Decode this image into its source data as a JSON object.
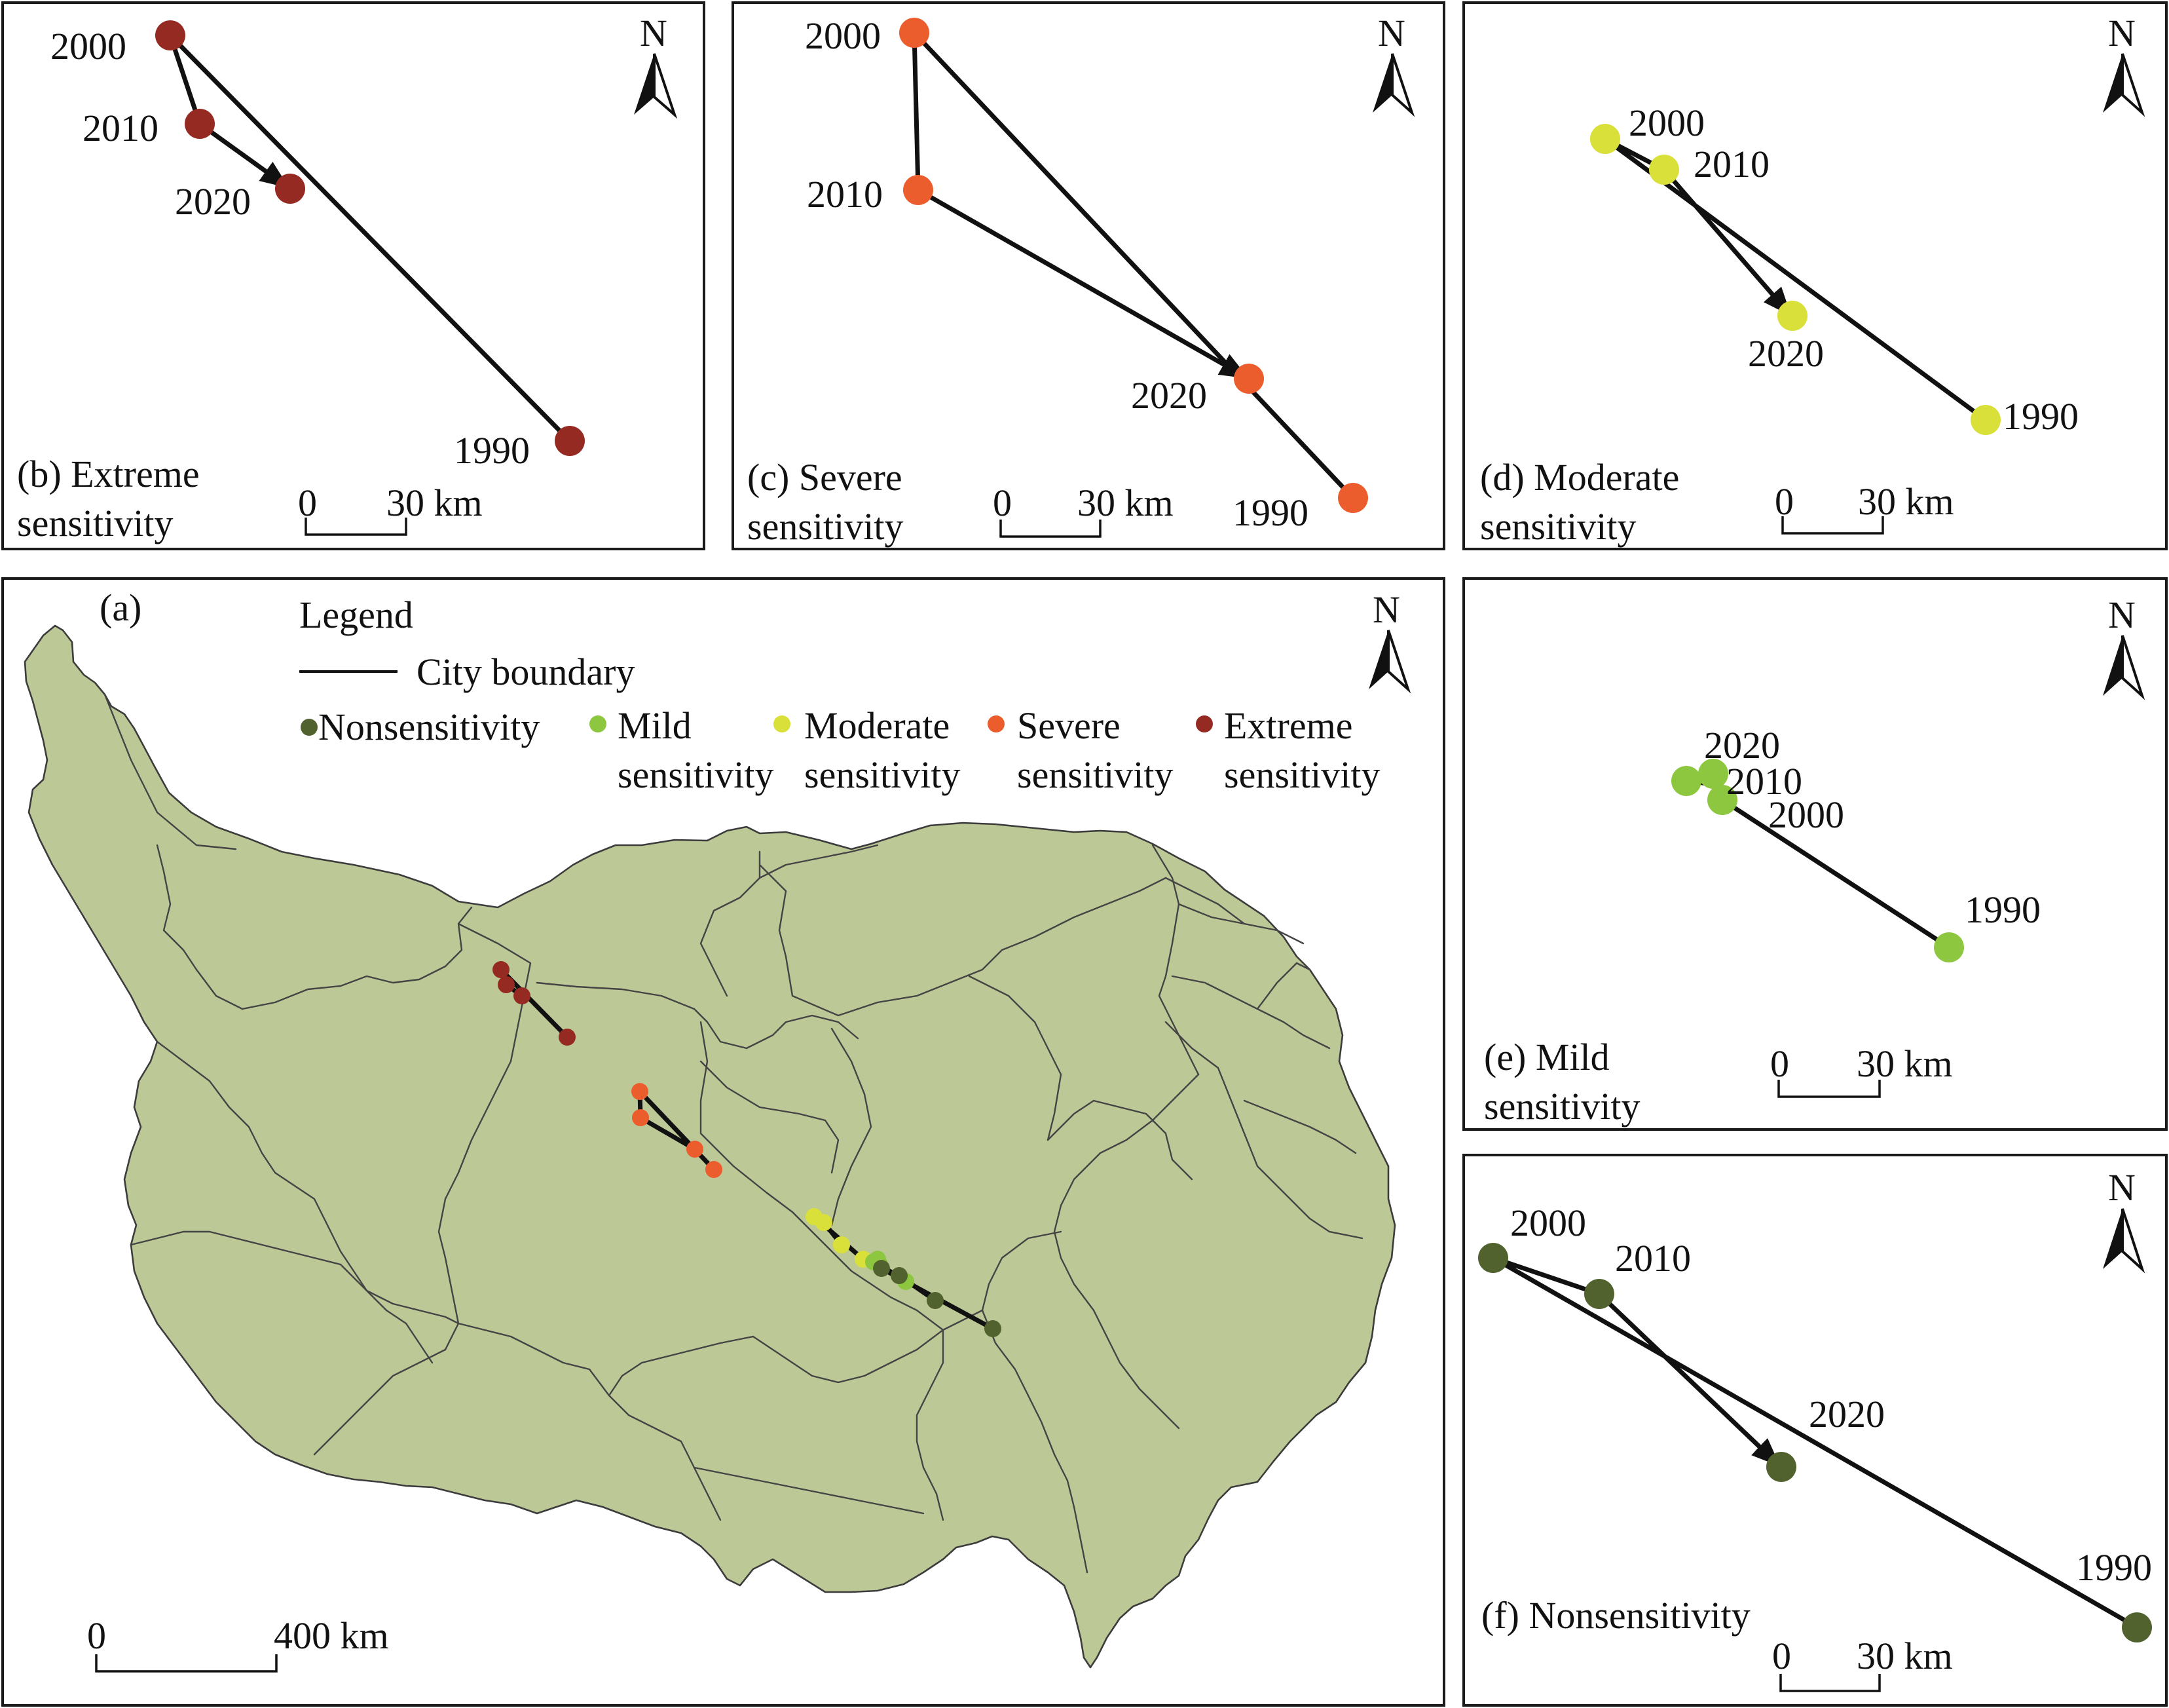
{
  "colors": {
    "nonsensitivity": "#52622f",
    "mild": "#8dc63f",
    "moderate": "#d9e03a",
    "severe": "#ec5d2e",
    "extreme": "#952a22",
    "land": "#bdc897"
  },
  "north_label": "N",
  "overview": {
    "panel_label": "(a)",
    "legend": {
      "title": "Legend",
      "boundary_label": "City boundary",
      "items": [
        {
          "key": "nonsensitivity",
          "lines": [
            "Nonsensitivity"
          ]
        },
        {
          "key": "mild",
          "lines": [
            "Mild",
            "sensitivity"
          ]
        },
        {
          "key": "moderate",
          "lines": [
            "Moderate",
            "sensitivity"
          ]
        },
        {
          "key": "severe",
          "lines": [
            "Severe",
            "sensitivity"
          ]
        },
        {
          "key": "extreme",
          "lines": [
            "Extreme",
            "sensitivity"
          ]
        }
      ]
    },
    "scale": {
      "start": "0",
      "end": "400 km"
    }
  },
  "panels": [
    {
      "id": "b",
      "title_lines": [
        "(b) Extreme",
        "sensitivity"
      ],
      "color_key": "extreme",
      "order": [
        "1990",
        "2000",
        "2010",
        "2020"
      ],
      "scale": {
        "start": "0",
        "end": "30 km"
      }
    },
    {
      "id": "c",
      "title_lines": [
        "(c) Severe",
        "sensitivity"
      ],
      "color_key": "severe",
      "order": [
        "1990",
        "2000",
        "2010",
        "2020"
      ],
      "scale": {
        "start": "0",
        "end": "30 km"
      }
    },
    {
      "id": "d",
      "title_lines": [
        "(d) Moderate",
        "sensitivity"
      ],
      "color_key": "moderate",
      "order": [
        "1990",
        "2000",
        "2010",
        "2020"
      ],
      "scale": {
        "start": "0",
        "end": "30 km"
      }
    },
    {
      "id": "e",
      "title_lines": [
        "(e) Mild",
        "sensitivity"
      ],
      "color_key": "mild",
      "order": [
        "1990",
        "2000",
        "2010",
        "2020"
      ],
      "scale": {
        "start": "0",
        "end": "30 km"
      }
    },
    {
      "id": "f",
      "title_lines": [
        "(f) Nonsensitivity"
      ],
      "color_key": "nonsensitivity",
      "order": [
        "1990",
        "2000",
        "2010",
        "2020"
      ],
      "scale": {
        "start": "0",
        "end": "30 km"
      }
    }
  ]
}
